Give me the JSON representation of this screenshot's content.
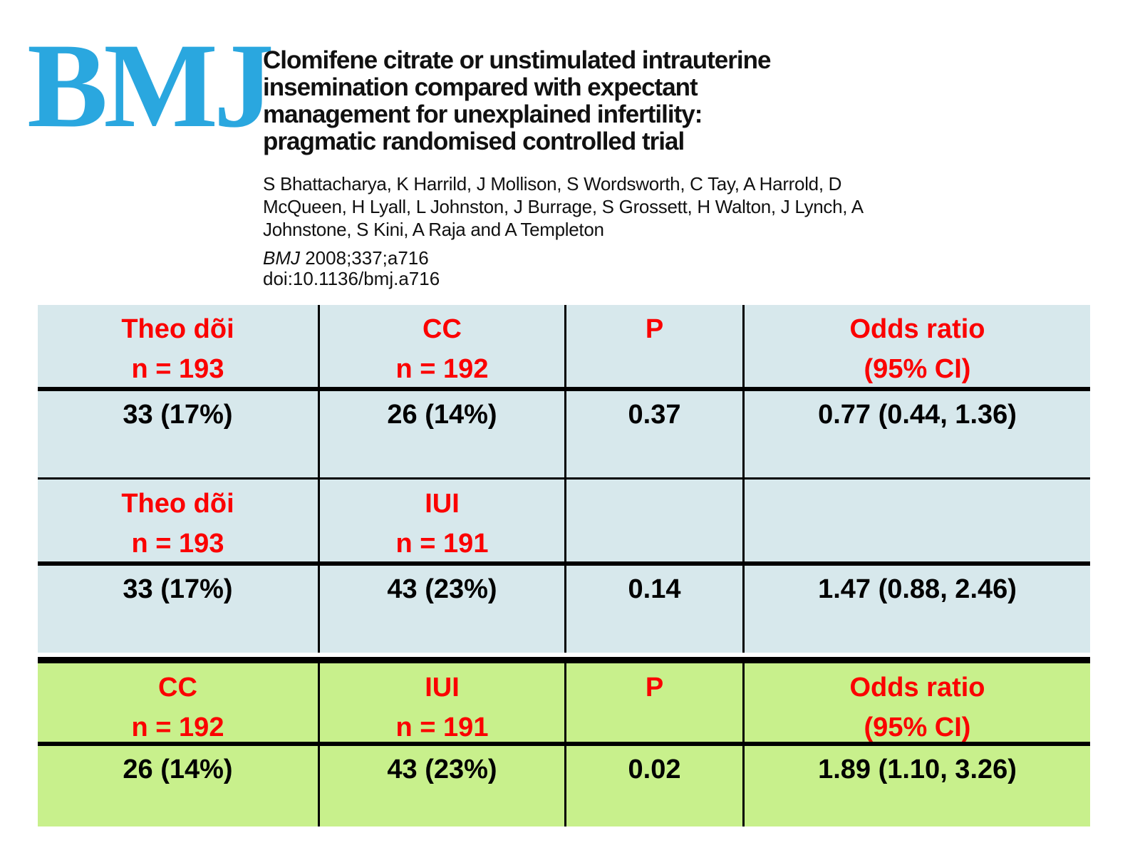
{
  "logo": {
    "text": "BMJ",
    "color": "#2AA7DF"
  },
  "paper": {
    "title_lines": [
      "Clomifene citrate or unstimulated intrauterine",
      "insemination compared with expectant",
      "management for unexplained infertility:",
      "pragmatic randomised controlled trial"
    ],
    "author_lines": [
      "S Bhattacharya, K Harrild, J Mollison, S Wordsworth, C Tay, A Harrold, D",
      "McQueen, H Lyall, L Johnston, J Burrage, S Grossett, H Walton, J Lynch, A",
      "Johnstone, S Kini, A Raja and A Templeton"
    ],
    "citation": {
      "journal": "BMJ",
      "rest": " 2008;337;a716"
    },
    "doi": "doi:10.1136/bmj.a716"
  },
  "table": {
    "colors": {
      "blue_section_bg": "#D7E8EC",
      "green_section_bg": "#C8F08C",
      "header_text": "#FB0000",
      "data_text": "#000000",
      "grid_line": "#000000"
    },
    "sections": [
      {
        "name": "expectant-vs-cc",
        "header": [
          {
            "l1": "Theo dõi",
            "l2": "n = 193"
          },
          {
            "l1": "CC",
            "l2": "n = 192"
          },
          {
            "l1": "P",
            "l2": ""
          },
          {
            "l1": "Odds ratio",
            "l2": "(95% CI)"
          }
        ],
        "values": [
          "33 (17%)",
          "26 (14%)",
          "0.37",
          "0.77 (0.44, 1.36)"
        ]
      },
      {
        "name": "expectant-vs-iui",
        "header": [
          {
            "l1": "Theo dõi",
            "l2": "n = 193"
          },
          {
            "l1": "IUI",
            "l2": "n = 191"
          },
          {
            "l1": "",
            "l2": ""
          },
          {
            "l1": "",
            "l2": ""
          }
        ],
        "values": [
          "33 (17%)",
          "43 (23%)",
          "0.14",
          "1.47 (0.88, 2.46)"
        ]
      },
      {
        "name": "cc-vs-iui",
        "header": [
          {
            "l1": "CC",
            "l2": "n = 192"
          },
          {
            "l1": "IUI",
            "l2": "n = 191"
          },
          {
            "l1": "P",
            "l2": ""
          },
          {
            "l1": "Odds ratio",
            "l2": "(95% CI)"
          }
        ],
        "values": [
          "26 (14%)",
          "43 (23%)",
          "0.02",
          "1.89 (1.10, 3.26)"
        ]
      }
    ]
  }
}
